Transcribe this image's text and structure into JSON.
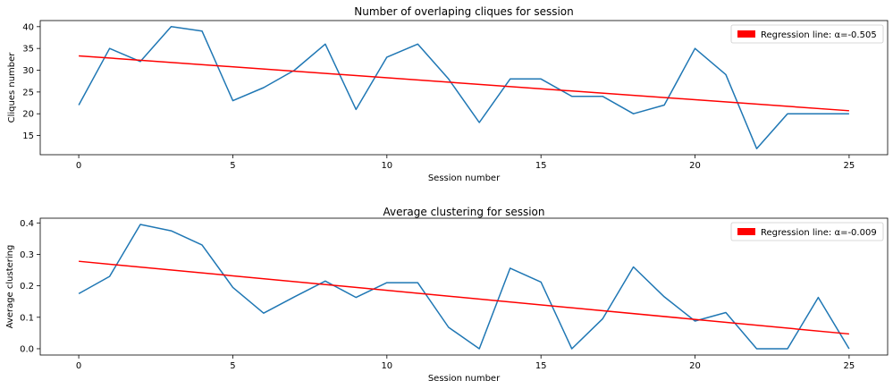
{
  "chart_data": [
    {
      "type": "line",
      "title": "Number of overlaping cliques for session",
      "xlabel": "Session number",
      "ylabel": "Cliques number",
      "xlim": [
        -1.25,
        26.25
      ],
      "ylim": [
        10.6,
        41.4
      ],
      "xticks": [
        0,
        5,
        10,
        15,
        20,
        25
      ],
      "yticks": [
        15,
        20,
        25,
        30,
        35,
        40
      ],
      "grid": false,
      "legend_position": "top-right",
      "series": [
        {
          "color": "#1f77b4",
          "x": [
            0,
            1,
            2,
            3,
            4,
            5,
            6,
            7,
            8,
            9,
            10,
            11,
            12,
            13,
            14,
            15,
            16,
            17,
            18,
            19,
            20,
            21,
            22,
            23,
            24,
            25
          ],
          "y": [
            22,
            35,
            32,
            40,
            39,
            23,
            26,
            30,
            36,
            21,
            33,
            36,
            28,
            18,
            28,
            28,
            24,
            24,
            20,
            22,
            35,
            29,
            12,
            20,
            20,
            20
          ]
        }
      ],
      "regression": {
        "name": "Regression line: α=-0.505",
        "color": "#ff0000",
        "x": [
          0,
          25
        ],
        "y": [
          33.3,
          20.7
        ]
      }
    },
    {
      "type": "line",
      "title": "Average clustering for session",
      "xlabel": "Session number",
      "ylabel": "Average clustering",
      "xlim": [
        -1.25,
        26.25
      ],
      "ylim": [
        -0.02,
        0.415
      ],
      "xticks": [
        0,
        5,
        10,
        15,
        20,
        25
      ],
      "yticks": [
        0.0,
        0.1,
        0.2,
        0.3,
        0.4
      ],
      "ytick_labels": [
        "0.0",
        "0.1",
        "0.2",
        "0.3",
        "0.4"
      ],
      "grid": false,
      "legend_position": "top-right",
      "series": [
        {
          "color": "#1f77b4",
          "x": [
            0,
            1,
            2,
            3,
            4,
            5,
            6,
            7,
            8,
            9,
            10,
            11,
            12,
            13,
            14,
            15,
            16,
            17,
            18,
            19,
            20,
            21,
            22,
            23,
            24,
            25
          ],
          "y": [
            0.175,
            0.23,
            0.395,
            0.375,
            0.33,
            0.195,
            0.113,
            0.165,
            0.215,
            0.163,
            0.21,
            0.21,
            0.068,
            0.0,
            0.256,
            0.212,
            0.0,
            0.095,
            0.26,
            0.165,
            0.088,
            0.115,
            0.0,
            0.0,
            0.163,
            0.0
          ]
        }
      ],
      "regression": {
        "name": "Regression line: α=-0.009",
        "color": "#ff0000",
        "x": [
          0,
          25
        ],
        "y": [
          0.278,
          0.047
        ]
      }
    }
  ]
}
